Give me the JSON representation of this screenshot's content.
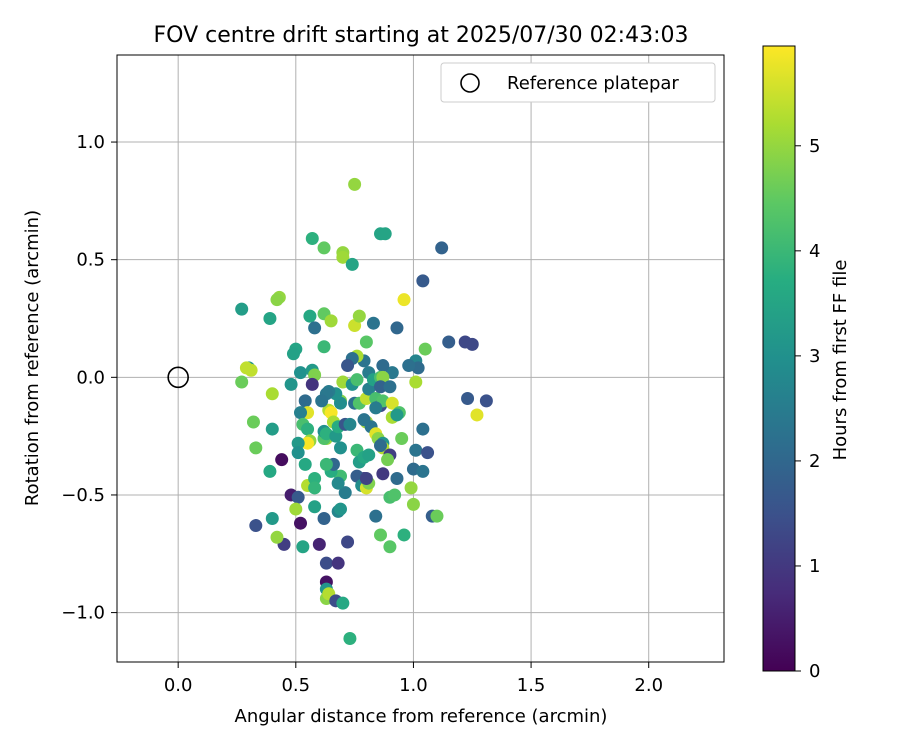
{
  "chart_data": {
    "type": "scatter",
    "title": "FOV centre drift starting at 2025/07/30 02:43:03",
    "xlabel": "Angular distance from reference (arcmin)",
    "ylabel": "Rotation from reference (arcmin)",
    "xlim": [
      -0.26,
      2.32
    ],
    "ylim": [
      -1.21,
      1.37
    ],
    "xticks": [
      "0.0",
      "0.5",
      "1.0",
      "1.5",
      "2.0"
    ],
    "yticks": [
      "−1.0",
      "−0.5",
      "0.0",
      "0.5",
      "1.0"
    ],
    "xtick_values": [
      0.0,
      0.5,
      1.0,
      1.5,
      2.0
    ],
    "ytick_values": [
      -1.0,
      -0.5,
      0.0,
      0.5,
      1.0
    ],
    "grid": true,
    "legend": {
      "position": "top-right",
      "entries": [
        {
          "label": "Reference platepar",
          "marker": "open-circle"
        }
      ]
    },
    "reference": {
      "x": 0.0,
      "y": 0.0
    },
    "colorbar": {
      "label": "Hours from first FF file",
      "colormap": "viridis",
      "range": [
        0,
        5.95
      ],
      "ticks": [
        "0",
        "1",
        "2",
        "3",
        "4",
        "5"
      ],
      "tick_values": [
        0,
        1,
        2,
        3,
        4,
        5
      ]
    },
    "points": [
      [
        0.75,
        0.82,
        5.0
      ],
      [
        0.57,
        0.59,
        3.8
      ],
      [
        0.62,
        0.55,
        4.5
      ],
      [
        0.7,
        0.53,
        5.0
      ],
      [
        0.7,
        0.51,
        5.1
      ],
      [
        0.74,
        0.48,
        3.5
      ],
      [
        0.86,
        0.61,
        3.5
      ],
      [
        0.88,
        0.61,
        3.5
      ],
      [
        1.12,
        0.55,
        1.9
      ],
      [
        1.04,
        0.41,
        1.7
      ],
      [
        0.27,
        0.29,
        3.3
      ],
      [
        0.43,
        0.34,
        5.0
      ],
      [
        0.42,
        0.33,
        4.9
      ],
      [
        0.39,
        0.25,
        3.5
      ],
      [
        0.56,
        0.26,
        3.6
      ],
      [
        0.62,
        0.27,
        4.5
      ],
      [
        0.65,
        0.24,
        5.1
      ],
      [
        0.58,
        0.21,
        2.2
      ],
      [
        0.75,
        0.22,
        5.5
      ],
      [
        0.77,
        0.26,
        5.0
      ],
      [
        0.83,
        0.23,
        2.3
      ],
      [
        0.93,
        0.21,
        2.0
      ],
      [
        0.96,
        0.33,
        5.8
      ],
      [
        1.15,
        0.15,
        1.8
      ],
      [
        1.22,
        0.15,
        1.3
      ],
      [
        1.25,
        0.14,
        1.3
      ],
      [
        1.31,
        -0.1,
        1.5
      ],
      [
        1.23,
        -0.09,
        1.7
      ],
      [
        1.27,
        -0.16,
        5.7
      ],
      [
        1.05,
        0.12,
        4.6
      ],
      [
        1.01,
        0.07,
        2.7
      ],
      [
        1.02,
        0.04,
        2.1
      ],
      [
        0.98,
        0.05,
        2.2
      ],
      [
        0.91,
        0.02,
        2.4
      ],
      [
        0.87,
        0.05,
        2.1
      ],
      [
        0.8,
        0.15,
        4.4
      ],
      [
        0.79,
        0.07,
        2.3
      ],
      [
        0.76,
        0.09,
        5.2
      ],
      [
        0.74,
        0.08,
        2.2
      ],
      [
        0.72,
        0.05,
        1.6
      ],
      [
        0.62,
        0.13,
        4.0
      ],
      [
        0.5,
        0.12,
        3.5
      ],
      [
        0.49,
        0.1,
        3.4
      ],
      [
        0.3,
        0.04,
        3.1
      ],
      [
        0.31,
        0.03,
        5.4
      ],
      [
        0.29,
        0.04,
        5.4
      ],
      [
        0.27,
        -0.02,
        4.6
      ],
      [
        0.32,
        -0.19,
        4.6
      ],
      [
        0.33,
        -0.3,
        4.6
      ],
      [
        0.39,
        -0.4,
        3.6
      ],
      [
        0.4,
        -0.22,
        3.3
      ],
      [
        0.4,
        -0.07,
        5.2
      ],
      [
        0.44,
        -0.35,
        0.2
      ],
      [
        0.48,
        -0.5,
        0.5
      ],
      [
        0.51,
        -0.51,
        1.7
      ],
      [
        0.5,
        -0.56,
        5.1
      ],
      [
        0.52,
        -0.62,
        0.3
      ],
      [
        0.53,
        -0.72,
        3.5
      ],
      [
        0.45,
        -0.71,
        1.1
      ],
      [
        0.42,
        -0.68,
        5.0
      ],
      [
        0.4,
        -0.6,
        3.2
      ],
      [
        0.33,
        -0.63,
        1.5
      ],
      [
        0.48,
        -0.03,
        3.1
      ],
      [
        0.52,
        0.02,
        3.0
      ],
      [
        0.57,
        0.03,
        3.2
      ],
      [
        0.58,
        0.01,
        4.8
      ],
      [
        0.57,
        -0.03,
        0.9
      ],
      [
        0.54,
        -0.1,
        2.1
      ],
      [
        0.55,
        -0.15,
        5.7
      ],
      [
        0.52,
        -0.15,
        2.6
      ],
      [
        0.53,
        -0.2,
        4.2
      ],
      [
        0.55,
        -0.22,
        3.8
      ],
      [
        0.56,
        -0.27,
        5.0
      ],
      [
        0.55,
        -0.28,
        5.9
      ],
      [
        0.51,
        -0.28,
        3.2
      ],
      [
        0.51,
        -0.32,
        3.0
      ],
      [
        0.54,
        -0.37,
        3.6
      ],
      [
        0.55,
        -0.46,
        5.3
      ],
      [
        0.58,
        -0.43,
        3.8
      ],
      [
        0.58,
        -0.47,
        3.9
      ],
      [
        0.58,
        -0.55,
        3.4
      ],
      [
        0.62,
        -0.6,
        1.9
      ],
      [
        0.6,
        -0.71,
        0.6
      ],
      [
        0.63,
        -0.79,
        1.4
      ],
      [
        0.63,
        -0.87,
        0.3
      ],
      [
        0.63,
        -0.9,
        3.1
      ],
      [
        0.63,
        -0.94,
        4.9
      ],
      [
        0.64,
        -0.92,
        5.3
      ],
      [
        0.67,
        -0.95,
        1.4
      ],
      [
        0.7,
        -0.96,
        3.6
      ],
      [
        0.68,
        -0.79,
        0.9
      ],
      [
        0.72,
        -0.7,
        1.3
      ],
      [
        0.73,
        -1.11,
        3.8
      ],
      [
        0.68,
        -0.57,
        2.7
      ],
      [
        0.69,
        -0.56,
        3.1
      ],
      [
        0.71,
        -0.49,
        2.5
      ],
      [
        0.69,
        -0.42,
        4.1
      ],
      [
        0.68,
        -0.45,
        2.8
      ],
      [
        0.65,
        -0.4,
        3.7
      ],
      [
        0.66,
        -0.37,
        2.0
      ],
      [
        0.63,
        -0.37,
        4.0
      ],
      [
        0.63,
        -0.26,
        5.0
      ],
      [
        0.62,
        -0.26,
        4.3
      ],
      [
        0.64,
        -0.14,
        5.3
      ],
      [
        0.65,
        -0.15,
        5.9
      ],
      [
        0.66,
        -0.19,
        5.2
      ],
      [
        0.62,
        -0.23,
        3.0
      ],
      [
        0.63,
        -0.24,
        3.8
      ],
      [
        0.67,
        -0.25,
        3.2
      ],
      [
        0.69,
        -0.3,
        3.0
      ],
      [
        0.68,
        -0.21,
        3.7
      ],
      [
        0.69,
        -0.1,
        4.8
      ],
      [
        0.69,
        -0.11,
        2.9
      ],
      [
        0.71,
        -0.2,
        1.6
      ],
      [
        0.73,
        -0.2,
        2.7
      ],
      [
        0.7,
        -0.02,
        5.1
      ],
      [
        0.67,
        -0.07,
        3.0
      ],
      [
        0.64,
        -0.06,
        2.5
      ],
      [
        0.63,
        -0.07,
        2.4
      ],
      [
        0.61,
        -0.1,
        2.3
      ],
      [
        0.74,
        -0.03,
        3.0
      ],
      [
        0.76,
        -0.01,
        4.2
      ],
      [
        0.75,
        -0.11,
        2.2
      ],
      [
        0.77,
        -0.11,
        4.3
      ],
      [
        0.76,
        -0.31,
        4.0
      ],
      [
        0.77,
        -0.36,
        3.3
      ],
      [
        0.79,
        -0.34,
        3.6
      ],
      [
        0.79,
        -0.43,
        0.9
      ],
      [
        0.76,
        -0.42,
        1.8
      ],
      [
        0.78,
        -0.46,
        2.9
      ],
      [
        0.8,
        -0.47,
        5.6
      ],
      [
        0.81,
        -0.45,
        4.8
      ],
      [
        0.8,
        -0.43,
        1.2
      ],
      [
        0.81,
        -0.33,
        3.4
      ],
      [
        0.8,
        -0.19,
        5.8
      ],
      [
        0.8,
        -0.19,
        5.1
      ],
      [
        0.79,
        -0.18,
        2.3
      ],
      [
        0.8,
        -0.09,
        5.4
      ],
      [
        0.81,
        -0.05,
        2.6
      ],
      [
        0.84,
        -0.09,
        4.2
      ],
      [
        0.81,
        0.02,
        2.5
      ],
      [
        0.83,
        -0.01,
        3.4
      ],
      [
        0.86,
        0.0,
        4.2
      ],
      [
        0.87,
        0.0,
        4.9
      ],
      [
        0.86,
        -0.04,
        1.9
      ],
      [
        0.9,
        -0.04,
        2.2
      ],
      [
        0.86,
        -0.12,
        1.4
      ],
      [
        0.87,
        -0.1,
        4.3
      ],
      [
        0.84,
        -0.13,
        2.5
      ],
      [
        0.82,
        -0.21,
        2.3
      ],
      [
        0.84,
        -0.24,
        5.7
      ],
      [
        0.85,
        -0.26,
        4.9
      ],
      [
        0.87,
        -0.28,
        3.1
      ],
      [
        0.87,
        -0.3,
        5.3
      ],
      [
        0.86,
        -0.29,
        2.1
      ],
      [
        0.84,
        -0.59,
        2.2
      ],
      [
        0.87,
        -0.41,
        1.0
      ],
      [
        0.86,
        -0.67,
        4.5
      ],
      [
        0.9,
        -0.51,
        4.2
      ],
      [
        0.9,
        -0.72,
        4.4
      ],
      [
        0.92,
        -0.5,
        4.3
      ],
      [
        0.9,
        -0.33,
        1.1
      ],
      [
        0.89,
        -0.35,
        4.7
      ],
      [
        0.93,
        -0.43,
        2.1
      ],
      [
        0.91,
        -0.17,
        5.2
      ],
      [
        0.91,
        -0.11,
        5.6
      ],
      [
        0.94,
        -0.15,
        4.3
      ],
      [
        0.93,
        -0.16,
        3.2
      ],
      [
        0.95,
        -0.26,
        4.6
      ],
      [
        0.96,
        -0.67,
        3.8
      ],
      [
        0.99,
        -0.47,
        5.0
      ],
      [
        1.0,
        -0.54,
        4.9
      ],
      [
        1.0,
        -0.39,
        2.1
      ],
      [
        1.01,
        -0.31,
        2.3
      ],
      [
        1.01,
        -0.02,
        5.2
      ],
      [
        1.04,
        -0.4,
        2.3
      ],
      [
        1.04,
        -0.22,
        2.2
      ],
      [
        1.06,
        -0.32,
        1.5
      ],
      [
        1.08,
        -0.59,
        1.8
      ],
      [
        1.1,
        -0.59,
        4.6
      ]
    ]
  }
}
